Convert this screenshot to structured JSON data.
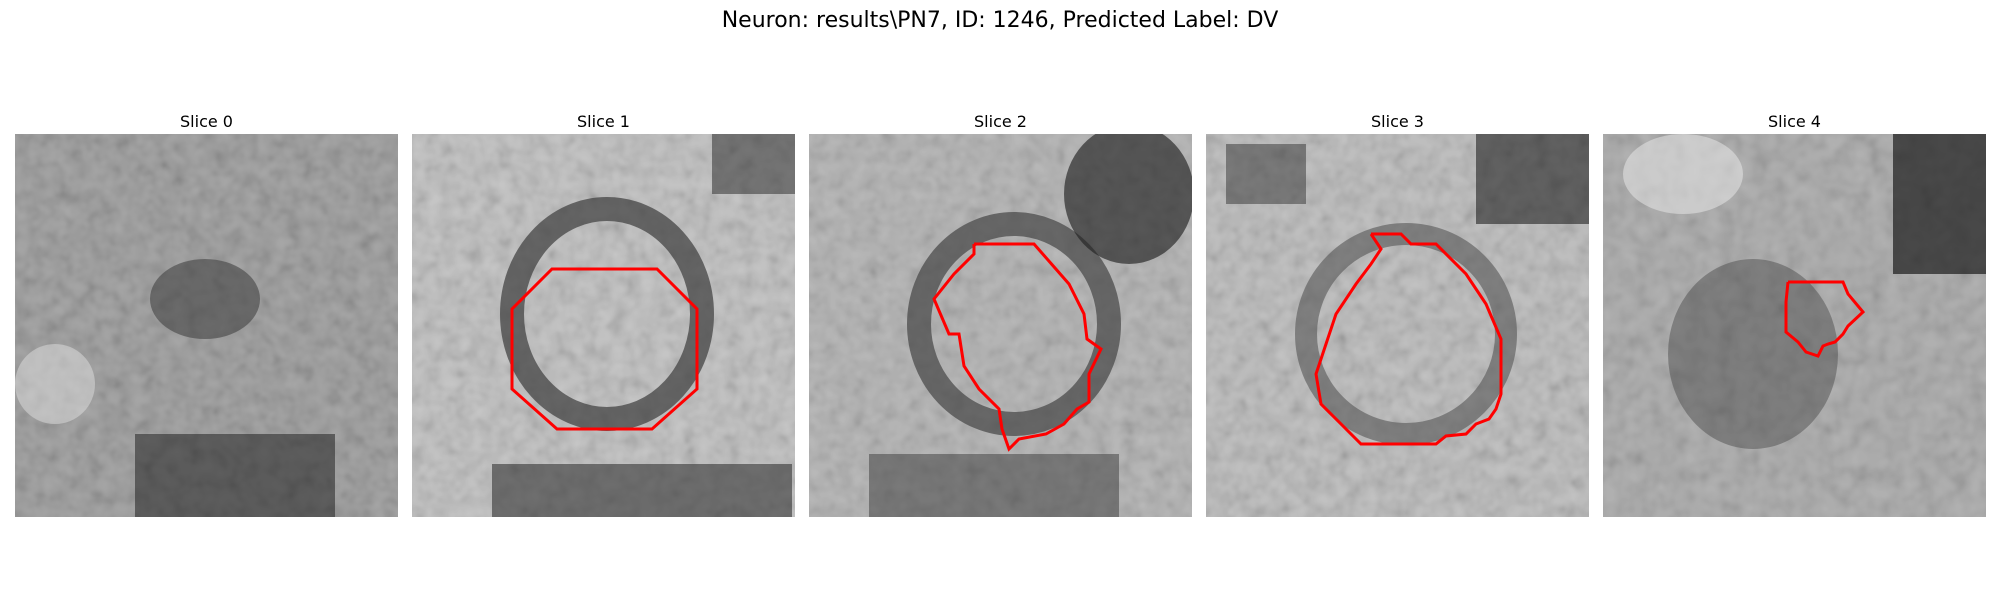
{
  "figure": {
    "title": "Neuron: results\\PN7, ID: 1246, Predicted Label: DV"
  },
  "slices": [
    {
      "title": "Slice 0",
      "has_contour": false
    },
    {
      "title": "Slice 1",
      "has_contour": true
    },
    {
      "title": "Slice 2",
      "has_contour": true
    },
    {
      "title": "Slice 3",
      "has_contour": true
    },
    {
      "title": "Slice 4",
      "has_contour": true
    }
  ],
  "colors": {
    "contour": "#ff0000",
    "background": "#ffffff"
  }
}
